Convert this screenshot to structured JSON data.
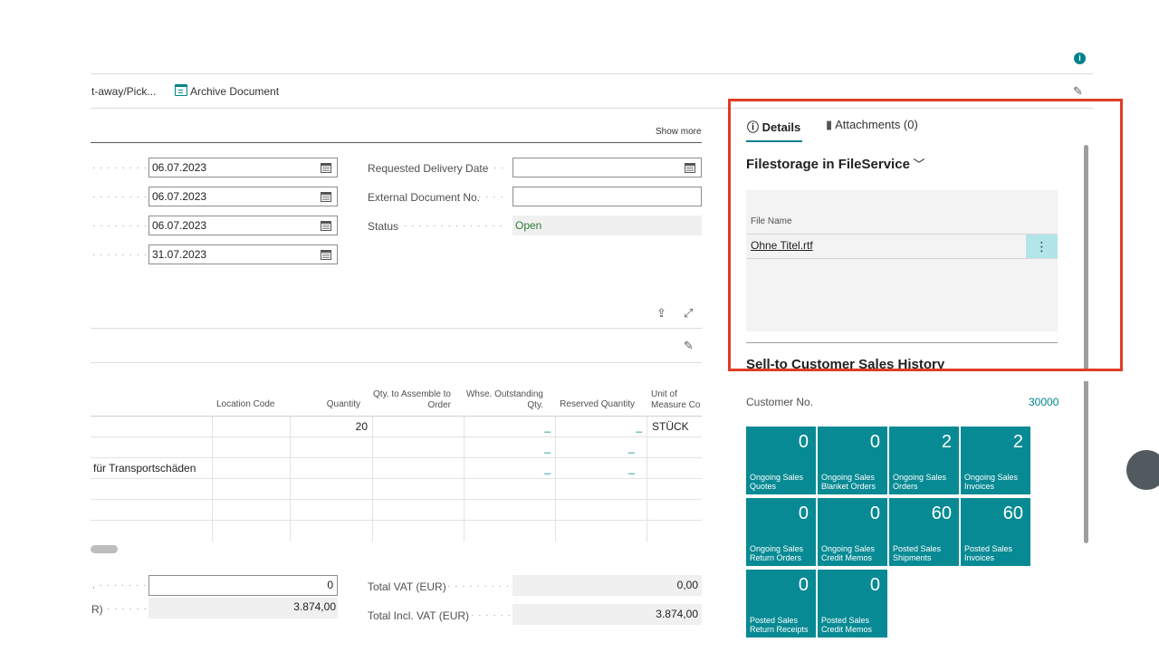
{
  "actions": {
    "put_away_pick": "t-away/Pick...",
    "archive_document": "Archive Document"
  },
  "general": {
    "show_more": "Show more",
    "dates": [
      "06.07.2023",
      "06.07.2023",
      "06.07.2023",
      "31.07.2023"
    ],
    "requested_delivery_date_label": "Requested Delivery Date",
    "requested_delivery_date_value": "",
    "external_document_no_label": "External Document No.",
    "external_document_no_value": "",
    "status_label": "Status",
    "status_value": "Open"
  },
  "lines": {
    "headers": {
      "location_code": "Location Code",
      "quantity": "Quantity",
      "qty_to_assemble": "Qty. to Assemble to Order",
      "whse_outstanding": "Whse. Outstanding Qty.",
      "reserved_quantity": "Reserved Quantity",
      "unit_of_measure": "Unit of Measure Co"
    },
    "rows": [
      {
        "description": "",
        "quantity": "20",
        "whse": "_",
        "reserved": "_",
        "uom": "STÜCK"
      },
      {
        "description": "",
        "quantity": "",
        "whse": "_",
        "reserved": "_",
        "uom": ""
      },
      {
        "description": "für Transportschäden",
        "quantity": "",
        "whse": "_",
        "reserved": "_",
        "uom": ""
      },
      {
        "description": "",
        "quantity": "",
        "whse": "",
        "reserved": "",
        "uom": ""
      },
      {
        "description": "",
        "quantity": "",
        "whse": "",
        "reserved": "",
        "uom": ""
      },
      {
        "description": "",
        "quantity": "",
        "whse": "",
        "reserved": "",
        "uom": ""
      }
    ]
  },
  "totals": {
    "left_value_1": "0",
    "left_label_2_tail": "R)",
    "left_value_2": "3.874,00",
    "total_vat_label": "Total VAT (EUR)",
    "total_vat_value": "0,00",
    "total_incl_vat_label": "Total Incl. VAT (EUR)",
    "total_incl_vat_value": "3.874,00"
  },
  "factbox": {
    "tab_details": "Details",
    "tab_attachments": "Attachments (0)",
    "filestorage_title": "Filestorage in FileService",
    "file_name_header": "File Name",
    "file_name": "Ohne Titel.rtf",
    "sales_history_title": "Sell-to Customer Sales History",
    "customer_no_label": "Customer No.",
    "customer_no_value": "30000",
    "cues": [
      {
        "value": "0",
        "label": "Ongoing Sales Quotes"
      },
      {
        "value": "0",
        "label": "Ongoing Sales Blanket Orders"
      },
      {
        "value": "2",
        "label": "Ongoing Sales Orders"
      },
      {
        "value": "2",
        "label": "Ongoing Sales Invoices"
      },
      {
        "value": "0",
        "label": "Ongoing Sales Return Orders"
      },
      {
        "value": "0",
        "label": "Ongoing Sales Credit Memos"
      },
      {
        "value": "60",
        "label": "Posted Sales Shipments"
      },
      {
        "value": "60",
        "label": "Posted Sales Invoices"
      },
      {
        "value": "0",
        "label": "Posted Sales Return Receipts"
      },
      {
        "value": "0",
        "label": "Posted Sales Credit Memos"
      }
    ]
  },
  "colors": {
    "accent": "#00828c",
    "cue_tile": "#088a94",
    "highlight_frame": "#e03c27",
    "status_open": "#2e7d32"
  }
}
